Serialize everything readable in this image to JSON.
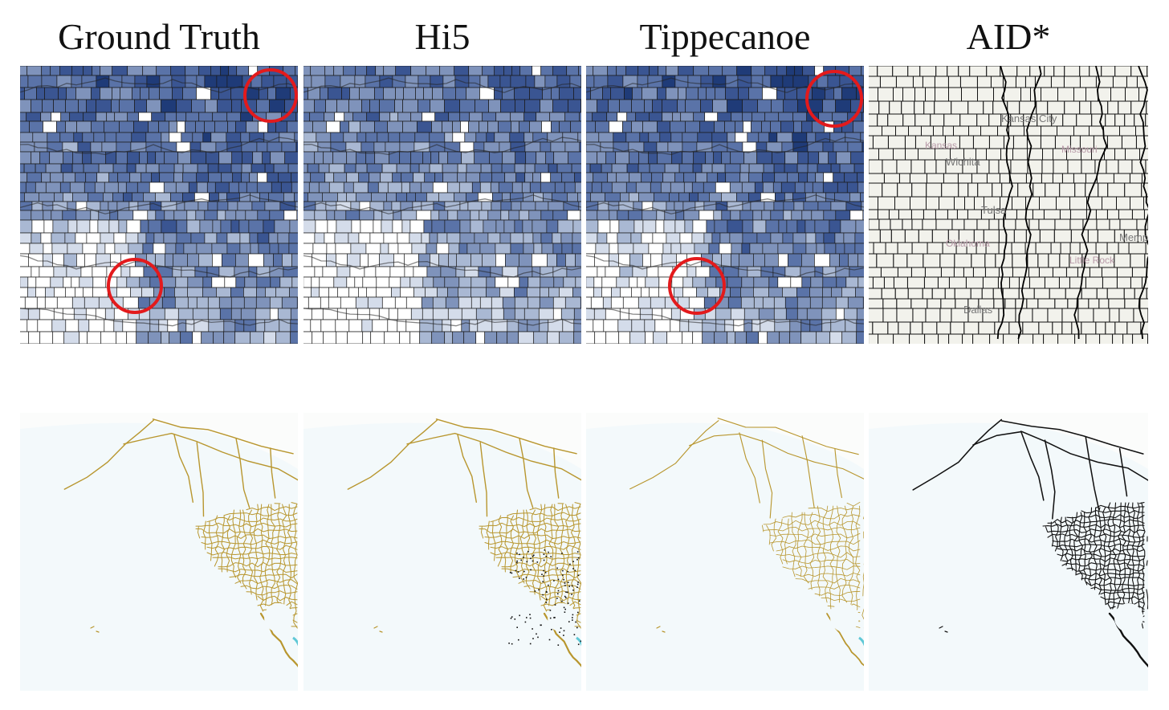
{
  "columns": [
    {
      "id": "ground-truth",
      "title": "Ground Truth"
    },
    {
      "id": "hi5",
      "title": "Hi5"
    },
    {
      "id": "tippecanoe",
      "title": "Tippecanoe"
    },
    {
      "id": "aid",
      "title": "AID*"
    }
  ],
  "colors": {
    "choropleth": [
      "#ffffff",
      "#d4dcea",
      "#a9b8d3",
      "#7f93bb",
      "#5a73a8",
      "#3a5592",
      "#1f3b78"
    ],
    "county_border": "#1a1a1a",
    "highlight_circle": "#e31a1c",
    "road_gold": "#b8962e",
    "road_black": "#111111",
    "water": "#f3f9fb",
    "land_light": "#fbfcfb",
    "aid_background": "#f2f2ec",
    "coast_cyan": "#5fc8d6"
  },
  "aid_map": {
    "city_labels": [
      "Kansas City",
      "Kansas",
      "Wichita",
      "Tulsa",
      "Oklahoma",
      "Dallas",
      "Little Rock",
      "Missouri",
      "Memphis"
    ]
  }
}
